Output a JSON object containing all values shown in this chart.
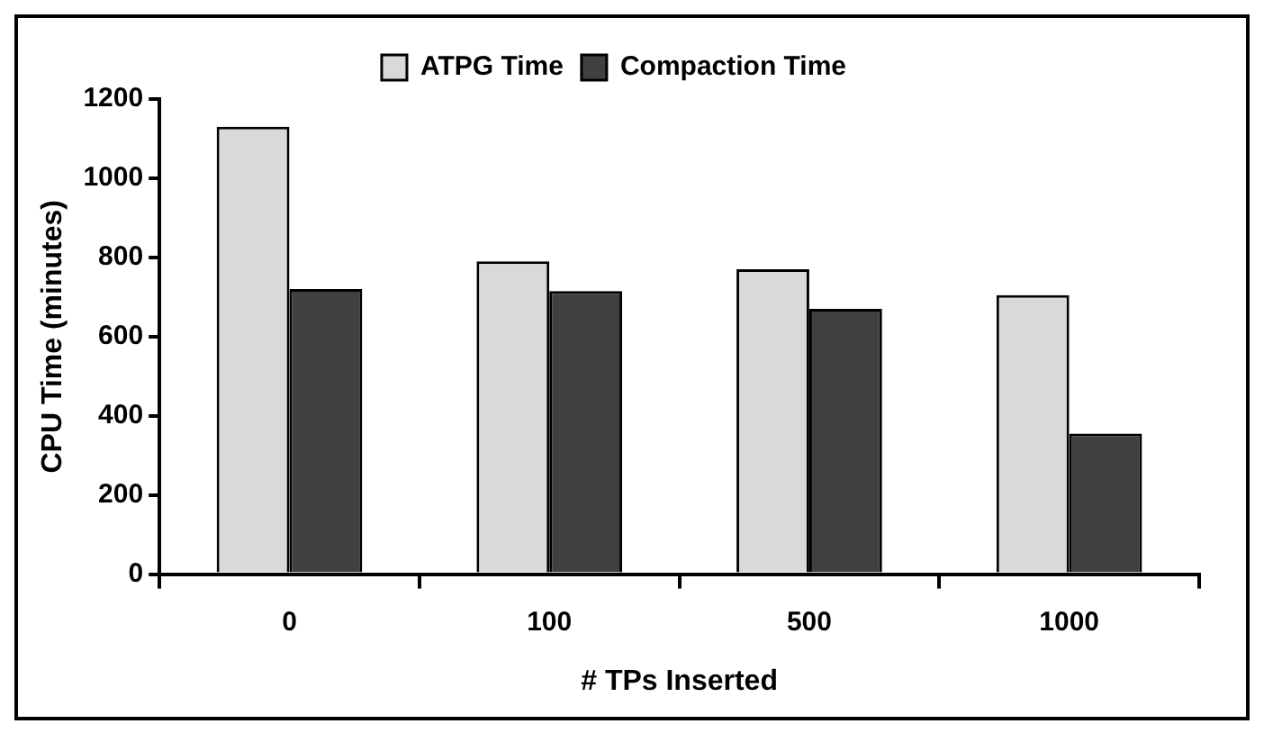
{
  "chart_data": {
    "type": "bar",
    "xlabel": "# TPs Inserted",
    "ylabel": "CPU Time (minutes)",
    "categories": [
      "0",
      "100",
      "500",
      "1000"
    ],
    "series": [
      {
        "name": "ATPG Time",
        "color": "#d9d9d9",
        "values": [
          1130,
          790,
          770,
          705
        ]
      },
      {
        "name": "Compaction Time",
        "color": "#404040",
        "values": [
          720,
          715,
          670,
          355
        ]
      }
    ],
    "ylim": [
      0,
      1200
    ],
    "yticks": [
      0,
      200,
      400,
      600,
      800,
      1000,
      1200
    ],
    "grid": false,
    "legend": "top"
  }
}
